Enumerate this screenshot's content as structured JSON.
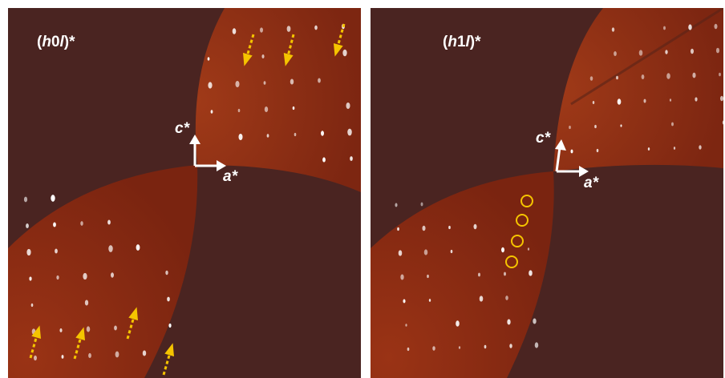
{
  "panels": [
    {
      "label_prefix": "(",
      "label_h": "h",
      "label_k": "0",
      "label_l": "l",
      "label_suffix": ")*",
      "axis_c": "c*",
      "axis_a": "a*"
    },
    {
      "label_prefix": "(",
      "label_h": "h",
      "label_k": "1",
      "label_l": "l",
      "label_suffix": ")*",
      "axis_c": "c*",
      "axis_a": "a*"
    }
  ],
  "colors": {
    "background": "#4a2421",
    "detector": "#8a2a12",
    "reflection": "#ffffff",
    "arrow": "#f5c400",
    "circle": "#f5c400"
  }
}
